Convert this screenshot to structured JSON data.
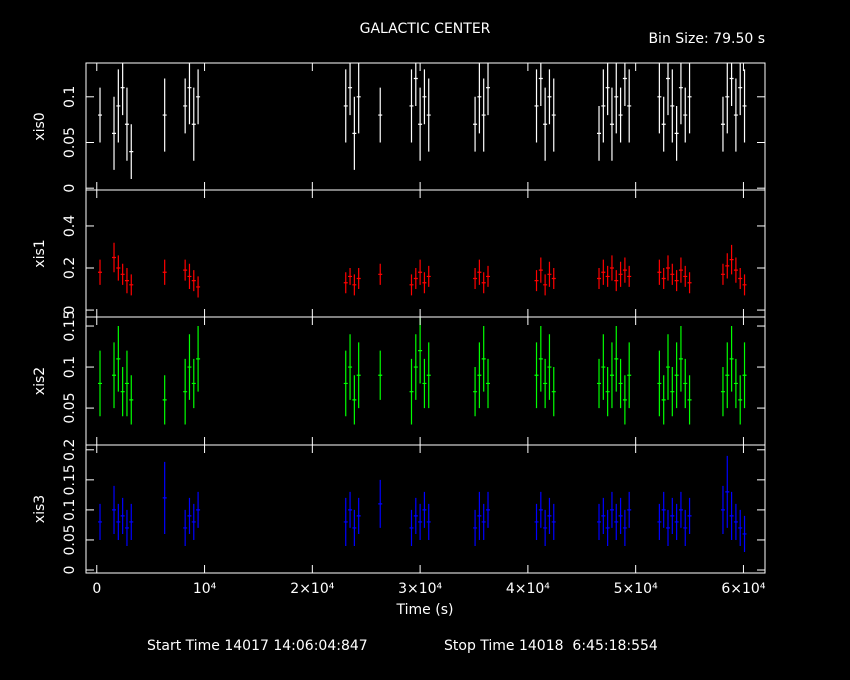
{
  "chart_data": {
    "type": "errorbar",
    "title": "GALACTIC CENTER",
    "annotation": "Bin Size: 79.50 s",
    "xlabel": "Time (s)",
    "xlim": [
      -1000,
      62000
    ],
    "xticks": [
      0,
      {
        "value": 10000,
        "label": "10⁴"
      },
      {
        "value": 20000,
        "label": "2×10⁴"
      },
      {
        "value": 30000,
        "label": "3×10⁴"
      },
      {
        "value": 40000,
        "label": "4×10⁴"
      },
      {
        "value": 50000,
        "label": "5×10⁴"
      },
      {
        "value": 60000,
        "label": "6×10⁴"
      }
    ],
    "x": [
      300,
      1600,
      2000,
      2400,
      2800,
      3200,
      6300,
      8200,
      8600,
      9000,
      9400,
      23100,
      23500,
      23900,
      24300,
      26300,
      29200,
      29600,
      30000,
      30400,
      30800,
      35100,
      35500,
      35900,
      36300,
      40800,
      41200,
      41600,
      42000,
      42400,
      46600,
      47000,
      47400,
      47800,
      48200,
      48600,
      49000,
      49400,
      52200,
      52600,
      53000,
      53400,
      53800,
      54200,
      54600,
      55000,
      58100,
      58500,
      58900,
      59300,
      59700,
      60100
    ],
    "series": [
      {
        "name": "xis0",
        "color": "#ffffff",
        "ylim": [
          -0.002,
          0.137
        ],
        "yticks": [
          0,
          0.05,
          0.1
        ],
        "values": [
          0.08,
          0.06,
          0.09,
          0.11,
          0.07,
          0.04,
          0.08,
          0.09,
          0.11,
          0.07,
          0.1,
          0.09,
          0.11,
          0.06,
          0.1,
          0.08,
          0.09,
          0.12,
          0.07,
          0.1,
          0.08,
          0.07,
          0.1,
          0.08,
          0.11,
          0.09,
          0.12,
          0.07,
          0.1,
          0.08,
          0.06,
          0.09,
          0.11,
          0.07,
          0.1,
          0.08,
          0.12,
          0.09,
          0.1,
          0.07,
          0.12,
          0.09,
          0.06,
          0.11,
          0.08,
          0.1,
          0.07,
          0.1,
          0.12,
          0.08,
          0.11,
          0.09
        ],
        "errors": [
          0.03,
          0.04,
          0.04,
          0.03,
          0.04,
          0.03,
          0.04,
          0.03,
          0.04,
          0.04,
          0.03,
          0.04,
          0.03,
          0.04,
          0.04,
          0.03,
          0.04,
          0.03,
          0.04,
          0.03,
          0.04,
          0.03,
          0.04,
          0.04,
          0.03,
          0.04,
          0.03,
          0.04,
          0.03,
          0.04,
          0.03,
          0.04,
          0.03,
          0.04,
          0.04,
          0.03,
          0.03,
          0.04,
          0.04,
          0.03,
          0.04,
          0.04,
          0.03,
          0.04,
          0.03,
          0.04,
          0.03,
          0.04,
          0.03,
          0.04,
          0.03,
          0.04
        ]
      },
      {
        "name": "xis1",
        "color": "#ff0000",
        "ylim": [
          -0.033,
          0.571
        ],
        "yticks": [
          0,
          0.2,
          0.4
        ],
        "values": [
          0.18,
          0.25,
          0.2,
          0.17,
          0.14,
          0.12,
          0.18,
          0.19,
          0.16,
          0.14,
          0.11,
          0.13,
          0.16,
          0.12,
          0.15,
          0.17,
          0.12,
          0.15,
          0.18,
          0.13,
          0.16,
          0.15,
          0.18,
          0.13,
          0.16,
          0.14,
          0.19,
          0.12,
          0.17,
          0.15,
          0.15,
          0.18,
          0.16,
          0.2,
          0.14,
          0.17,
          0.19,
          0.16,
          0.18,
          0.15,
          0.2,
          0.17,
          0.14,
          0.19,
          0.16,
          0.13,
          0.17,
          0.21,
          0.24,
          0.19,
          0.15,
          0.12
        ],
        "errors": [
          0.06,
          0.07,
          0.06,
          0.05,
          0.06,
          0.05,
          0.06,
          0.05,
          0.06,
          0.05,
          0.05,
          0.05,
          0.04,
          0.05,
          0.05,
          0.05,
          0.05,
          0.05,
          0.06,
          0.05,
          0.05,
          0.05,
          0.06,
          0.05,
          0.05,
          0.05,
          0.06,
          0.05,
          0.06,
          0.05,
          0.05,
          0.06,
          0.05,
          0.06,
          0.05,
          0.06,
          0.06,
          0.05,
          0.06,
          0.05,
          0.06,
          0.05,
          0.05,
          0.06,
          0.05,
          0.05,
          0.05,
          0.06,
          0.07,
          0.06,
          0.05,
          0.05
        ]
      },
      {
        "name": "xis2",
        "color": "#00ff00",
        "ylim": [
          0.005,
          0.161
        ],
        "yticks": [
          0.05,
          0.1,
          0.15
        ],
        "values": [
          0.08,
          0.09,
          0.11,
          0.07,
          0.08,
          0.06,
          0.06,
          0.07,
          0.1,
          0.08,
          0.11,
          0.08,
          0.1,
          0.06,
          0.09,
          0.09,
          0.07,
          0.1,
          0.12,
          0.08,
          0.09,
          0.07,
          0.09,
          0.11,
          0.08,
          0.09,
          0.11,
          0.08,
          0.1,
          0.07,
          0.08,
          0.1,
          0.07,
          0.09,
          0.11,
          0.08,
          0.06,
          0.09,
          0.08,
          0.06,
          0.1,
          0.07,
          0.09,
          0.11,
          0.08,
          0.06,
          0.07,
          0.09,
          0.11,
          0.08,
          0.06,
          0.09
        ],
        "errors": [
          0.04,
          0.04,
          0.04,
          0.03,
          0.04,
          0.03,
          0.03,
          0.04,
          0.04,
          0.03,
          0.04,
          0.04,
          0.04,
          0.03,
          0.04,
          0.03,
          0.04,
          0.04,
          0.04,
          0.03,
          0.04,
          0.03,
          0.04,
          0.04,
          0.03,
          0.04,
          0.04,
          0.03,
          0.04,
          0.03,
          0.03,
          0.04,
          0.03,
          0.04,
          0.04,
          0.03,
          0.03,
          0.04,
          0.04,
          0.03,
          0.04,
          0.03,
          0.04,
          0.04,
          0.03,
          0.03,
          0.03,
          0.04,
          0.04,
          0.03,
          0.03,
          0.04
        ]
      },
      {
        "name": "xis3",
        "color": "#0000ff",
        "ylim": [
          -0.005,
          0.208
        ],
        "yticks": [
          0,
          0.05,
          0.1,
          0.15,
          0.2
        ],
        "values": [
          0.08,
          0.1,
          0.08,
          0.09,
          0.07,
          0.08,
          0.12,
          0.07,
          0.09,
          0.08,
          0.1,
          0.08,
          0.1,
          0.07,
          0.09,
          0.11,
          0.07,
          0.09,
          0.08,
          0.1,
          0.08,
          0.07,
          0.09,
          0.08,
          0.1,
          0.08,
          0.1,
          0.07,
          0.09,
          0.08,
          0.08,
          0.09,
          0.07,
          0.1,
          0.08,
          0.09,
          0.07,
          0.1,
          0.08,
          0.1,
          0.07,
          0.09,
          0.08,
          0.1,
          0.07,
          0.09,
          0.1,
          0.13,
          0.09,
          0.08,
          0.07,
          0.06
        ],
        "errors": [
          0.03,
          0.04,
          0.03,
          0.03,
          0.03,
          0.03,
          0.06,
          0.03,
          0.03,
          0.03,
          0.03,
          0.04,
          0.03,
          0.03,
          0.03,
          0.04,
          0.03,
          0.03,
          0.03,
          0.03,
          0.03,
          0.03,
          0.04,
          0.03,
          0.03,
          0.03,
          0.03,
          0.03,
          0.03,
          0.03,
          0.03,
          0.03,
          0.03,
          0.03,
          0.03,
          0.03,
          0.03,
          0.03,
          0.03,
          0.03,
          0.03,
          0.03,
          0.03,
          0.03,
          0.03,
          0.03,
          0.04,
          0.06,
          0.04,
          0.03,
          0.03,
          0.03
        ]
      }
    ],
    "footer": {
      "start": "Start Time 14017 14:06:04:847",
      "stop": "Stop Time 14018  6:45:18:554"
    }
  }
}
